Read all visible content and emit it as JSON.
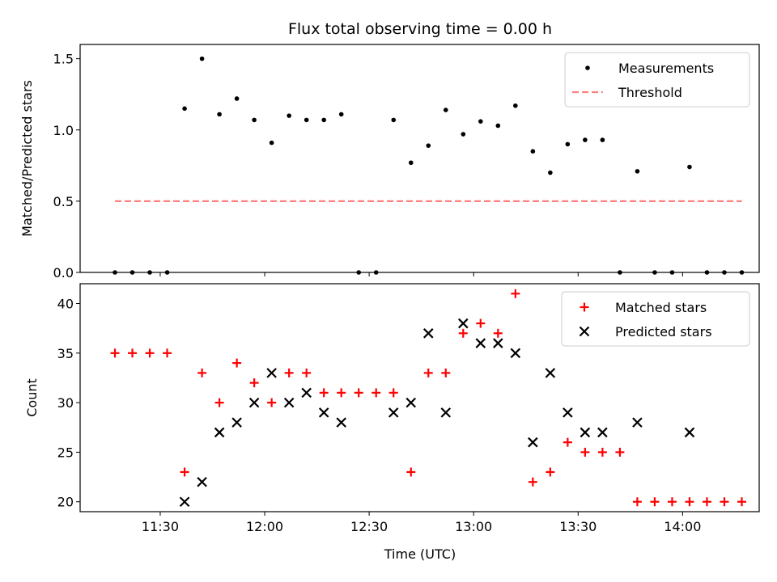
{
  "chart_data": [
    {
      "type": "scatter",
      "title": "Flux total observing time = 0.00 h",
      "xlabel": "",
      "ylabel": "Matched/Predicted stars",
      "ylim": [
        0,
        1.6
      ],
      "yticks": [
        0.0,
        0.5,
        1.0,
        1.5
      ],
      "ytick_labels": [
        "0.0",
        "0.5",
        "1.0",
        "1.5"
      ],
      "xlim": [
        "11:07",
        "14:22"
      ],
      "legend_position": "top-right",
      "legend": [
        "Measurements",
        "Threshold"
      ],
      "series": [
        {
          "name": "Measurements",
          "marker": "dot",
          "color": "#000000",
          "x": [
            "11:17",
            "11:22",
            "11:27",
            "11:32",
            "11:37",
            "11:42",
            "11:47",
            "11:52",
            "11:57",
            "12:02",
            "12:07",
            "12:12",
            "12:17",
            "12:22",
            "12:27",
            "12:32",
            "12:37",
            "12:42",
            "12:47",
            "12:52",
            "12:57",
            "13:02",
            "13:07",
            "13:12",
            "13:17",
            "13:22",
            "13:27",
            "13:32",
            "13:37",
            "13:42",
            "13:47",
            "13:52",
            "13:57",
            "14:02",
            "14:07",
            "14:12",
            "14:17"
          ],
          "y": [
            0,
            0,
            0,
            0,
            1.15,
            1.5,
            1.11,
            1.22,
            1.07,
            0.91,
            1.1,
            1.07,
            1.07,
            1.11,
            0,
            0,
            1.07,
            0.77,
            0.89,
            1.14,
            0.97,
            1.06,
            1.03,
            1.17,
            0.85,
            0.7,
            0.9,
            0.93,
            0.93,
            0,
            0.71,
            0,
            0,
            0.74,
            0,
            0,
            0
          ]
        },
        {
          "name": "Threshold",
          "style": "dashed",
          "color": "#ff7f7f",
          "x": [
            "11:17",
            "14:17"
          ],
          "y": [
            0.5,
            0.5
          ]
        }
      ]
    },
    {
      "type": "scatter",
      "title": "",
      "xlabel": "Time (UTC)",
      "ylabel": "Count",
      "ylim": [
        19,
        42
      ],
      "yticks": [
        20,
        25,
        30,
        35,
        40
      ],
      "ytick_labels": [
        "20",
        "25",
        "30",
        "35",
        "40"
      ],
      "xlim": [
        "11:07",
        "14:22"
      ],
      "xticks": [
        "11:30",
        "12:00",
        "12:30",
        "13:00",
        "13:30",
        "14:00"
      ],
      "legend_position": "top-right",
      "legend": [
        "Matched stars",
        "Predicted stars"
      ],
      "series": [
        {
          "name": "Matched stars",
          "marker": "plus",
          "color": "#ff0000",
          "x": [
            "11:17",
            "11:22",
            "11:27",
            "11:32",
            "11:37",
            "11:42",
            "11:47",
            "11:52",
            "11:57",
            "12:02",
            "12:07",
            "12:12",
            "12:17",
            "12:22",
            "12:27",
            "12:32",
            "12:37",
            "12:42",
            "12:47",
            "12:52",
            "12:57",
            "13:02",
            "13:07",
            "13:12",
            "13:17",
            "13:22",
            "13:27",
            "13:32",
            "13:37",
            "13:42",
            "13:47",
            "13:52",
            "13:57",
            "14:02",
            "14:07",
            "14:12",
            "14:17"
          ],
          "y": [
            35,
            35,
            35,
            35,
            23,
            33,
            30,
            34,
            32,
            30,
            33,
            33,
            31,
            31,
            31,
            31,
            31,
            23,
            33,
            33,
            37,
            38,
            37,
            41,
            22,
            23,
            26,
            25,
            25,
            25,
            20,
            20,
            20,
            20,
            20,
            20,
            20
          ]
        },
        {
          "name": "Predicted stars",
          "marker": "x",
          "color": "#000000",
          "x": [
            "11:37",
            "11:42",
            "11:47",
            "11:52",
            "11:57",
            "12:02",
            "12:07",
            "12:12",
            "12:17",
            "12:22",
            "12:37",
            "12:42",
            "12:47",
            "12:52",
            "12:57",
            "13:02",
            "13:07",
            "13:12",
            "13:17",
            "13:22",
            "13:27",
            "13:32",
            "13:37",
            "13:47",
            "14:02"
          ],
          "y": [
            20,
            22,
            27,
            28,
            30,
            33,
            30,
            31,
            29,
            28,
            29,
            30,
            37,
            29,
            38,
            36,
            36,
            35,
            26,
            33,
            29,
            27,
            27,
            28,
            27
          ]
        }
      ]
    }
  ]
}
